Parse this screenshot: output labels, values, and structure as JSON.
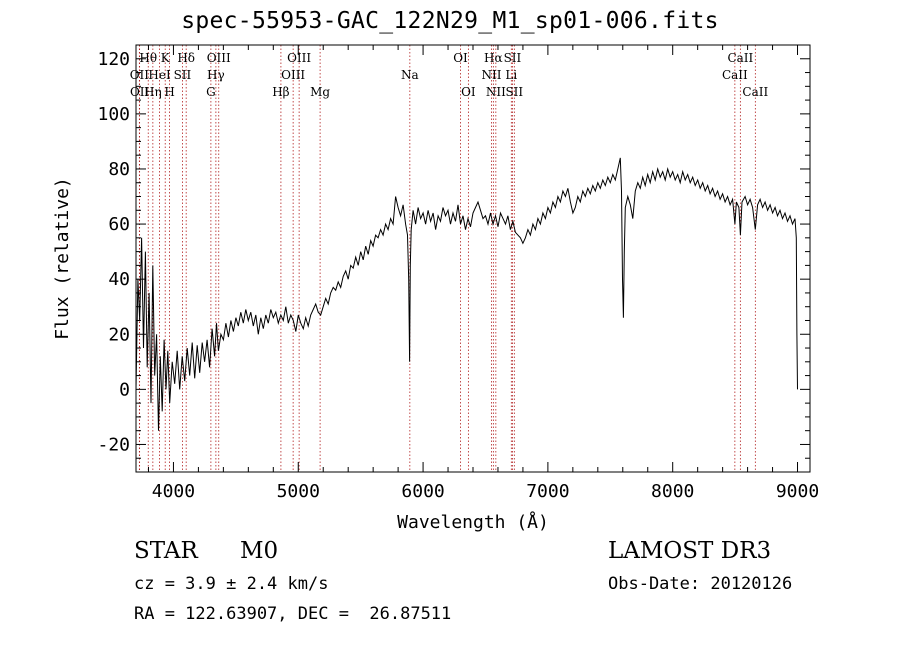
{
  "chart_data": {
    "type": "line",
    "title": "spec-55953-GAC_122N29_M1_sp01-006.fits",
    "xlabel": "Wavelength (Å)",
    "ylabel": "Flux (relative)",
    "xlim": [
      3700,
      9100
    ],
    "ylim": [
      -30,
      125
    ],
    "xticks": [
      4000,
      5000,
      6000,
      7000,
      8000,
      9000
    ],
    "yticks": [
      -20,
      0,
      20,
      40,
      60,
      80,
      100,
      120
    ],
    "grid": false,
    "line_color": "#000000",
    "marker_color": "#b22222",
    "lines": [
      {
        "name": "OII",
        "wavelength": 3727,
        "row": 2
      },
      {
        "name": "OII",
        "wavelength": 3729,
        "row": 3
      },
      {
        "name": "Hθ",
        "wavelength": 3798,
        "row": 1
      },
      {
        "name": "Hη",
        "wavelength": 3835,
        "row": 3
      },
      {
        "name": "HeI",
        "wavelength": 3889,
        "row": 2
      },
      {
        "name": "K",
        "wavelength": 3934,
        "row": 1
      },
      {
        "name": "H",
        "wavelength": 3969,
        "row": 3
      },
      {
        "name": "SII",
        "wavelength": 4072,
        "row": 2
      },
      {
        "name": "Hδ",
        "wavelength": 4102,
        "row": 1
      },
      {
        "name": "G",
        "wavelength": 4300,
        "row": 3
      },
      {
        "name": "Hγ",
        "wavelength": 4340,
        "row": 2
      },
      {
        "name": "OIII",
        "wavelength": 4363,
        "row": 1
      },
      {
        "name": "Hβ",
        "wavelength": 4861,
        "row": 3
      },
      {
        "name": "OIII",
        "wavelength": 4959,
        "row": 2
      },
      {
        "name": "OIII",
        "wavelength": 5007,
        "row": 1
      },
      {
        "name": "Mg",
        "wavelength": 5175,
        "row": 3
      },
      {
        "name": "Na",
        "wavelength": 5894,
        "row": 2
      },
      {
        "name": "OI",
        "wavelength": 6300,
        "row": 1
      },
      {
        "name": "OI",
        "wavelength": 6363,
        "row": 3
      },
      {
        "name": "NII",
        "wavelength": 6548,
        "row": 2
      },
      {
        "name": "Hα",
        "wavelength": 6563,
        "row": 1
      },
      {
        "name": "NII",
        "wavelength": 6583,
        "row": 3
      },
      {
        "name": "Li",
        "wavelength": 6707,
        "row": 2
      },
      {
        "name": "SII",
        "wavelength": 6716,
        "row": 1
      },
      {
        "name": "SII",
        "wavelength": 6731,
        "row": 3
      },
      {
        "name": "CaII",
        "wavelength": 8498,
        "row": 2
      },
      {
        "name": "CaII",
        "wavelength": 8542,
        "row": 1
      },
      {
        "name": "CaII",
        "wavelength": 8662,
        "row": 3
      }
    ],
    "spectrum": [
      [
        3700,
        0
      ],
      [
        3715,
        40
      ],
      [
        3730,
        25
      ],
      [
        3745,
        55
      ],
      [
        3760,
        15
      ],
      [
        3775,
        50
      ],
      [
        3790,
        8
      ],
      [
        3805,
        35
      ],
      [
        3820,
        -5
      ],
      [
        3835,
        45
      ],
      [
        3850,
        5
      ],
      [
        3865,
        20
      ],
      [
        3880,
        -15
      ],
      [
        3895,
        12
      ],
      [
        3910,
        -8
      ],
      [
        3925,
        18
      ],
      [
        3940,
        0
      ],
      [
        3955,
        14
      ],
      [
        3970,
        -5
      ],
      [
        3990,
        10
      ],
      [
        4010,
        2
      ],
      [
        4030,
        14
      ],
      [
        4050,
        0
      ],
      [
        4070,
        12
      ],
      [
        4090,
        3
      ],
      [
        4110,
        15
      ],
      [
        4130,
        5
      ],
      [
        4150,
        17
      ],
      [
        4170,
        4
      ],
      [
        4190,
        16
      ],
      [
        4210,
        6
      ],
      [
        4230,
        17
      ],
      [
        4250,
        10
      ],
      [
        4270,
        18
      ],
      [
        4290,
        8
      ],
      [
        4310,
        22
      ],
      [
        4330,
        12
      ],
      [
        4345,
        24
      ],
      [
        4360,
        14
      ],
      [
        4380,
        20
      ],
      [
        4400,
        18
      ],
      [
        4420,
        24
      ],
      [
        4440,
        19
      ],
      [
        4460,
        25
      ],
      [
        4480,
        21
      ],
      [
        4500,
        26
      ],
      [
        4520,
        23
      ],
      [
        4540,
        28
      ],
      [
        4560,
        24
      ],
      [
        4580,
        29
      ],
      [
        4600,
        25
      ],
      [
        4620,
        28
      ],
      [
        4640,
        23
      ],
      [
        4660,
        27
      ],
      [
        4680,
        20
      ],
      [
        4700,
        26
      ],
      [
        4720,
        22
      ],
      [
        4740,
        27
      ],
      [
        4760,
        24
      ],
      [
        4780,
        29
      ],
      [
        4800,
        26
      ],
      [
        4820,
        28
      ],
      [
        4840,
        24
      ],
      [
        4860,
        27
      ],
      [
        4880,
        25
      ],
      [
        4900,
        30
      ],
      [
        4920,
        24
      ],
      [
        4940,
        27
      ],
      [
        4960,
        25
      ],
      [
        4980,
        21
      ],
      [
        5000,
        27
      ],
      [
        5020,
        24
      ],
      [
        5040,
        22
      ],
      [
        5060,
        26
      ],
      [
        5080,
        23
      ],
      [
        5100,
        27
      ],
      [
        5120,
        29
      ],
      [
        5140,
        31
      ],
      [
        5160,
        28
      ],
      [
        5180,
        27
      ],
      [
        5200,
        30
      ],
      [
        5220,
        33
      ],
      [
        5240,
        31
      ],
      [
        5260,
        35
      ],
      [
        5280,
        37
      ],
      [
        5300,
        36
      ],
      [
        5320,
        39
      ],
      [
        5340,
        37
      ],
      [
        5360,
        41
      ],
      [
        5380,
        43
      ],
      [
        5400,
        40
      ],
      [
        5420,
        45
      ],
      [
        5440,
        44
      ],
      [
        5460,
        48
      ],
      [
        5480,
        45
      ],
      [
        5500,
        50
      ],
      [
        5520,
        47
      ],
      [
        5540,
        52
      ],
      [
        5560,
        49
      ],
      [
        5580,
        54
      ],
      [
        5600,
        52
      ],
      [
        5620,
        56
      ],
      [
        5640,
        55
      ],
      [
        5660,
        58
      ],
      [
        5680,
        56
      ],
      [
        5700,
        60
      ],
      [
        5720,
        58
      ],
      [
        5740,
        62
      ],
      [
        5760,
        60
      ],
      [
        5780,
        70
      ],
      [
        5800,
        66
      ],
      [
        5820,
        63
      ],
      [
        5840,
        67
      ],
      [
        5860,
        60
      ],
      [
        5875,
        56
      ],
      [
        5885,
        40
      ],
      [
        5892,
        10
      ],
      [
        5898,
        45
      ],
      [
        5905,
        58
      ],
      [
        5920,
        65
      ],
      [
        5940,
        60
      ],
      [
        5960,
        66
      ],
      [
        5980,
        62
      ],
      [
        6000,
        64
      ],
      [
        6020,
        60
      ],
      [
        6040,
        65
      ],
      [
        6060,
        61
      ],
      [
        6080,
        64
      ],
      [
        6100,
        58
      ],
      [
        6120,
        63
      ],
      [
        6140,
        61
      ],
      [
        6160,
        66
      ],
      [
        6180,
        63
      ],
      [
        6200,
        65
      ],
      [
        6220,
        60
      ],
      [
        6240,
        64
      ],
      [
        6260,
        61
      ],
      [
        6280,
        67
      ],
      [
        6300,
        60
      ],
      [
        6320,
        63
      ],
      [
        6340,
        58
      ],
      [
        6360,
        62
      ],
      [
        6380,
        59
      ],
      [
        6400,
        64
      ],
      [
        6420,
        66
      ],
      [
        6440,
        68
      ],
      [
        6460,
        65
      ],
      [
        6480,
        62
      ],
      [
        6500,
        63
      ],
      [
        6520,
        60
      ],
      [
        6540,
        64
      ],
      [
        6560,
        60
      ],
      [
        6580,
        63
      ],
      [
        6600,
        59
      ],
      [
        6620,
        64
      ],
      [
        6640,
        62
      ],
      [
        6660,
        60
      ],
      [
        6680,
        63
      ],
      [
        6700,
        58
      ],
      [
        6720,
        61
      ],
      [
        6740,
        57
      ],
      [
        6760,
        56
      ],
      [
        6780,
        55
      ],
      [
        6800,
        53
      ],
      [
        6820,
        55
      ],
      [
        6840,
        58
      ],
      [
        6860,
        56
      ],
      [
        6880,
        60
      ],
      [
        6900,
        58
      ],
      [
        6920,
        62
      ],
      [
        6940,
        60
      ],
      [
        6960,
        64
      ],
      [
        6980,
        62
      ],
      [
        7000,
        66
      ],
      [
        7020,
        64
      ],
      [
        7040,
        68
      ],
      [
        7060,
        66
      ],
      [
        7080,
        70
      ],
      [
        7100,
        68
      ],
      [
        7120,
        72
      ],
      [
        7140,
        70
      ],
      [
        7160,
        73
      ],
      [
        7180,
        68
      ],
      [
        7200,
        64
      ],
      [
        7220,
        66
      ],
      [
        7240,
        70
      ],
      [
        7260,
        68
      ],
      [
        7280,
        72
      ],
      [
        7300,
        70
      ],
      [
        7320,
        73
      ],
      [
        7340,
        71
      ],
      [
        7360,
        74
      ],
      [
        7380,
        72
      ],
      [
        7400,
        75
      ],
      [
        7420,
        73
      ],
      [
        7440,
        76
      ],
      [
        7460,
        74
      ],
      [
        7480,
        77
      ],
      [
        7500,
        75
      ],
      [
        7520,
        78
      ],
      [
        7540,
        76
      ],
      [
        7560,
        80
      ],
      [
        7580,
        84
      ],
      [
        7590,
        72
      ],
      [
        7598,
        40
      ],
      [
        7605,
        26
      ],
      [
        7612,
        50
      ],
      [
        7620,
        66
      ],
      [
        7640,
        70
      ],
      [
        7660,
        67
      ],
      [
        7680,
        62
      ],
      [
        7700,
        72
      ],
      [
        7720,
        75
      ],
      [
        7740,
        73
      ],
      [
        7760,
        77
      ],
      [
        7780,
        74
      ],
      [
        7800,
        78
      ],
      [
        7820,
        75
      ],
      [
        7840,
        79
      ],
      [
        7860,
        76
      ],
      [
        7880,
        80
      ],
      [
        7900,
        77
      ],
      [
        7920,
        79
      ],
      [
        7940,
        76
      ],
      [
        7960,
        80
      ],
      [
        7980,
        77
      ],
      [
        8000,
        79
      ],
      [
        8020,
        76
      ],
      [
        8040,
        78
      ],
      [
        8060,
        75
      ],
      [
        8080,
        79
      ],
      [
        8100,
        76
      ],
      [
        8120,
        78
      ],
      [
        8140,
        75
      ],
      [
        8160,
        77
      ],
      [
        8180,
        74
      ],
      [
        8200,
        76
      ],
      [
        8220,
        73
      ],
      [
        8240,
        75
      ],
      [
        8260,
        72
      ],
      [
        8280,
        74
      ],
      [
        8300,
        71
      ],
      [
        8320,
        73
      ],
      [
        8340,
        70
      ],
      [
        8360,
        72
      ],
      [
        8380,
        69
      ],
      [
        8400,
        71
      ],
      [
        8420,
        68
      ],
      [
        8440,
        70
      ],
      [
        8460,
        67
      ],
      [
        8480,
        69
      ],
      [
        8498,
        60
      ],
      [
        8510,
        68
      ],
      [
        8530,
        66
      ],
      [
        8542,
        56
      ],
      [
        8555,
        68
      ],
      [
        8580,
        70
      ],
      [
        8600,
        67
      ],
      [
        8620,
        69
      ],
      [
        8640,
        66
      ],
      [
        8662,
        58
      ],
      [
        8680,
        67
      ],
      [
        8700,
        69
      ],
      [
        8720,
        66
      ],
      [
        8740,
        68
      ],
      [
        8760,
        65
      ],
      [
        8780,
        67
      ],
      [
        8800,
        64
      ],
      [
        8820,
        66
      ],
      [
        8840,
        63
      ],
      [
        8860,
        65
      ],
      [
        8880,
        62
      ],
      [
        8900,
        64
      ],
      [
        8920,
        61
      ],
      [
        8940,
        63
      ],
      [
        8960,
        60
      ],
      [
        8980,
        62
      ],
      [
        8990,
        55
      ],
      [
        8995,
        20
      ],
      [
        9000,
        0
      ]
    ]
  },
  "info": {
    "class": "STAR",
    "subclass": "M0",
    "survey": "LAMOST DR3",
    "cz": "cz = 3.9 ± 2.4 km/s",
    "obs_date": "Obs-Date: 20120126",
    "radec": "RA = 122.63907, DEC =  26.87511"
  }
}
